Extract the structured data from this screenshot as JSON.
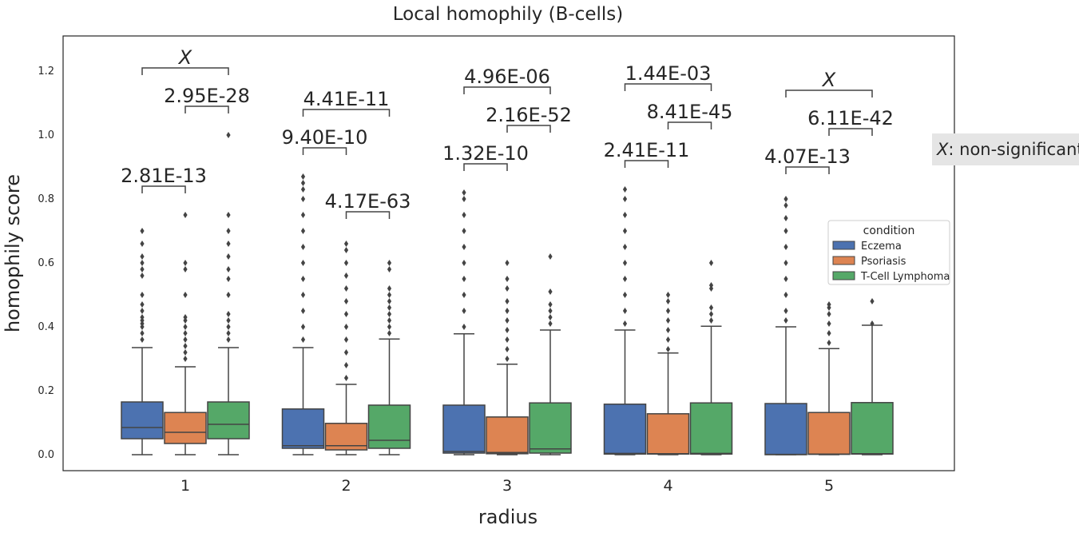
{
  "chart_data": {
    "type": "box",
    "title": "Local homophily (B-cells)",
    "xlabel": "radius",
    "ylabel": "homophily score",
    "categories": [
      "1",
      "2",
      "3",
      "4",
      "5"
    ],
    "ylim": [
      -0.05,
      1.31
    ],
    "yticks": [
      "0.0",
      "0.2",
      "0.4",
      "0.6",
      "0.8",
      "1.0",
      "1.2"
    ],
    "grid": false,
    "legend": {
      "title": "condition",
      "position": "center-right",
      "entries": [
        "Eczema",
        "Psoriasis",
        "T-Cell Lymphoma"
      ]
    },
    "series": [
      {
        "name": "Eczema",
        "color": "#4c72b0",
        "boxes": [
          {
            "min": 0.0,
            "q1": 0.05,
            "median": 0.085,
            "q3": 0.165,
            "max": 0.335,
            "outliers": [
              0.36,
              0.38,
              0.4,
              0.41,
              0.42,
              0.43,
              0.45,
              0.47,
              0.5,
              0.56,
              0.58,
              0.6,
              0.62,
              0.66,
              0.7
            ]
          },
          {
            "min": 0.0,
            "q1": 0.02,
            "median": 0.028,
            "q3": 0.143,
            "max": 0.335,
            "outliers": [
              0.36,
              0.4,
              0.45,
              0.5,
              0.55,
              0.6,
              0.65,
              0.7,
              0.75,
              0.8,
              0.83,
              0.85,
              0.87
            ]
          },
          {
            "min": 0.0,
            "q1": 0.005,
            "median": 0.01,
            "q3": 0.155,
            "max": 0.378,
            "outliers": [
              0.4,
              0.45,
              0.5,
              0.55,
              0.6,
              0.65,
              0.7,
              0.75,
              0.8,
              0.82
            ]
          },
          {
            "min": 0.0,
            "q1": 0.002,
            "median": 0.004,
            "q3": 0.158,
            "max": 0.39,
            "outliers": [
              0.41,
              0.45,
              0.5,
              0.55,
              0.6,
              0.65,
              0.7,
              0.75,
              0.8,
              0.83
            ]
          },
          {
            "min": 0.0,
            "q1": 0.0,
            "median": 0.001,
            "q3": 0.16,
            "max": 0.4,
            "outliers": [
              0.42,
              0.45,
              0.5,
              0.55,
              0.6,
              0.65,
              0.7,
              0.74,
              0.78,
              0.8
            ]
          }
        ]
      },
      {
        "name": "Psoriasis",
        "color": "#dd8452",
        "boxes": [
          {
            "min": 0.0,
            "q1": 0.035,
            "median": 0.07,
            "q3": 0.132,
            "max": 0.275,
            "outliers": [
              0.3,
              0.32,
              0.34,
              0.36,
              0.38,
              0.4,
              0.42,
              0.43,
              0.5,
              0.58,
              0.6,
              0.75
            ]
          },
          {
            "min": 0.0,
            "q1": 0.015,
            "median": 0.028,
            "q3": 0.098,
            "max": 0.22,
            "outliers": [
              0.24,
              0.28,
              0.32,
              0.36,
              0.4,
              0.44,
              0.48,
              0.52,
              0.56,
              0.6,
              0.64,
              0.66
            ]
          },
          {
            "min": 0.0,
            "q1": 0.003,
            "median": 0.007,
            "q3": 0.118,
            "max": 0.283,
            "outliers": [
              0.3,
              0.33,
              0.36,
              0.39,
              0.42,
              0.45,
              0.48,
              0.52,
              0.55,
              0.6
            ]
          },
          {
            "min": 0.0,
            "q1": 0.002,
            "median": 0.003,
            "q3": 0.128,
            "max": 0.318,
            "outliers": [
              0.33,
              0.36,
              0.39,
              0.42,
              0.45,
              0.48,
              0.5
            ]
          },
          {
            "min": 0.0,
            "q1": 0.001,
            "median": 0.002,
            "q3": 0.132,
            "max": 0.332,
            "outliers": [
              0.35,
              0.38,
              0.41,
              0.44,
              0.46,
              0.47
            ]
          }
        ]
      },
      {
        "name": "T-Cell Lymphoma",
        "color": "#55a868",
        "boxes": [
          {
            "min": 0.0,
            "q1": 0.05,
            "median": 0.095,
            "q3": 0.165,
            "max": 0.335,
            "outliers": [
              0.36,
              0.38,
              0.4,
              0.42,
              0.44,
              0.5,
              0.55,
              0.58,
              0.62,
              0.66,
              0.7,
              0.75,
              1.0
            ]
          },
          {
            "min": 0.0,
            "q1": 0.02,
            "median": 0.045,
            "q3": 0.155,
            "max": 0.362,
            "outliers": [
              0.38,
              0.4,
              0.42,
              0.44,
              0.46,
              0.48,
              0.5,
              0.52,
              0.58,
              0.6
            ]
          },
          {
            "min": 0.0,
            "q1": 0.005,
            "median": 0.018,
            "q3": 0.162,
            "max": 0.39,
            "outliers": [
              0.41,
              0.43,
              0.45,
              0.47,
              0.51,
              0.62
            ]
          },
          {
            "min": 0.0,
            "q1": 0.002,
            "median": 0.004,
            "q3": 0.162,
            "max": 0.402,
            "outliers": [
              0.42,
              0.44,
              0.46,
              0.52,
              0.53,
              0.6
            ]
          },
          {
            "min": 0.0,
            "q1": 0.002,
            "median": 0.003,
            "q3": 0.163,
            "max": 0.405,
            "outliers": [
              0.41,
              0.48
            ]
          }
        ]
      }
    ],
    "annotations": [
      {
        "category": "1",
        "from": 0,
        "to": 1,
        "y": 0.84,
        "label": "2.81E-13"
      },
      {
        "category": "1",
        "from": 1,
        "to": 2,
        "y": 1.09,
        "label": "2.95E-28"
      },
      {
        "category": "1",
        "from": 0,
        "to": 2,
        "y": 1.21,
        "label": "X",
        "nonsignificant": true
      },
      {
        "category": "2",
        "from": 0,
        "to": 1,
        "y": 0.96,
        "label": "9.40E-10"
      },
      {
        "category": "2",
        "from": 1,
        "to": 2,
        "y": 0.76,
        "label": "4.17E-63"
      },
      {
        "category": "2",
        "from": 0,
        "to": 2,
        "y": 1.08,
        "label": "4.41E-11"
      },
      {
        "category": "3",
        "from": 0,
        "to": 1,
        "y": 0.91,
        "label": "1.32E-10"
      },
      {
        "category": "3",
        "from": 1,
        "to": 2,
        "y": 1.03,
        "label": "2.16E-52"
      },
      {
        "category": "3",
        "from": 0,
        "to": 2,
        "y": 1.15,
        "label": "4.96E-06"
      },
      {
        "category": "4",
        "from": 0,
        "to": 1,
        "y": 0.92,
        "label": "2.41E-11"
      },
      {
        "category": "4",
        "from": 1,
        "to": 2,
        "y": 1.04,
        "label": "8.41E-45"
      },
      {
        "category": "4",
        "from": 0,
        "to": 2,
        "y": 1.16,
        "label": "1.44E-03"
      },
      {
        "category": "5",
        "from": 0,
        "to": 1,
        "y": 0.9,
        "label": "4.07E-13"
      },
      {
        "category": "5",
        "from": 1,
        "to": 2,
        "y": 1.02,
        "label": "6.11E-42"
      },
      {
        "category": "5",
        "from": 0,
        "to": 2,
        "y": 1.14,
        "label": "X",
        "nonsignificant": true
      }
    ],
    "note": {
      "symbol": "X",
      "text": ": non-significant"
    }
  }
}
